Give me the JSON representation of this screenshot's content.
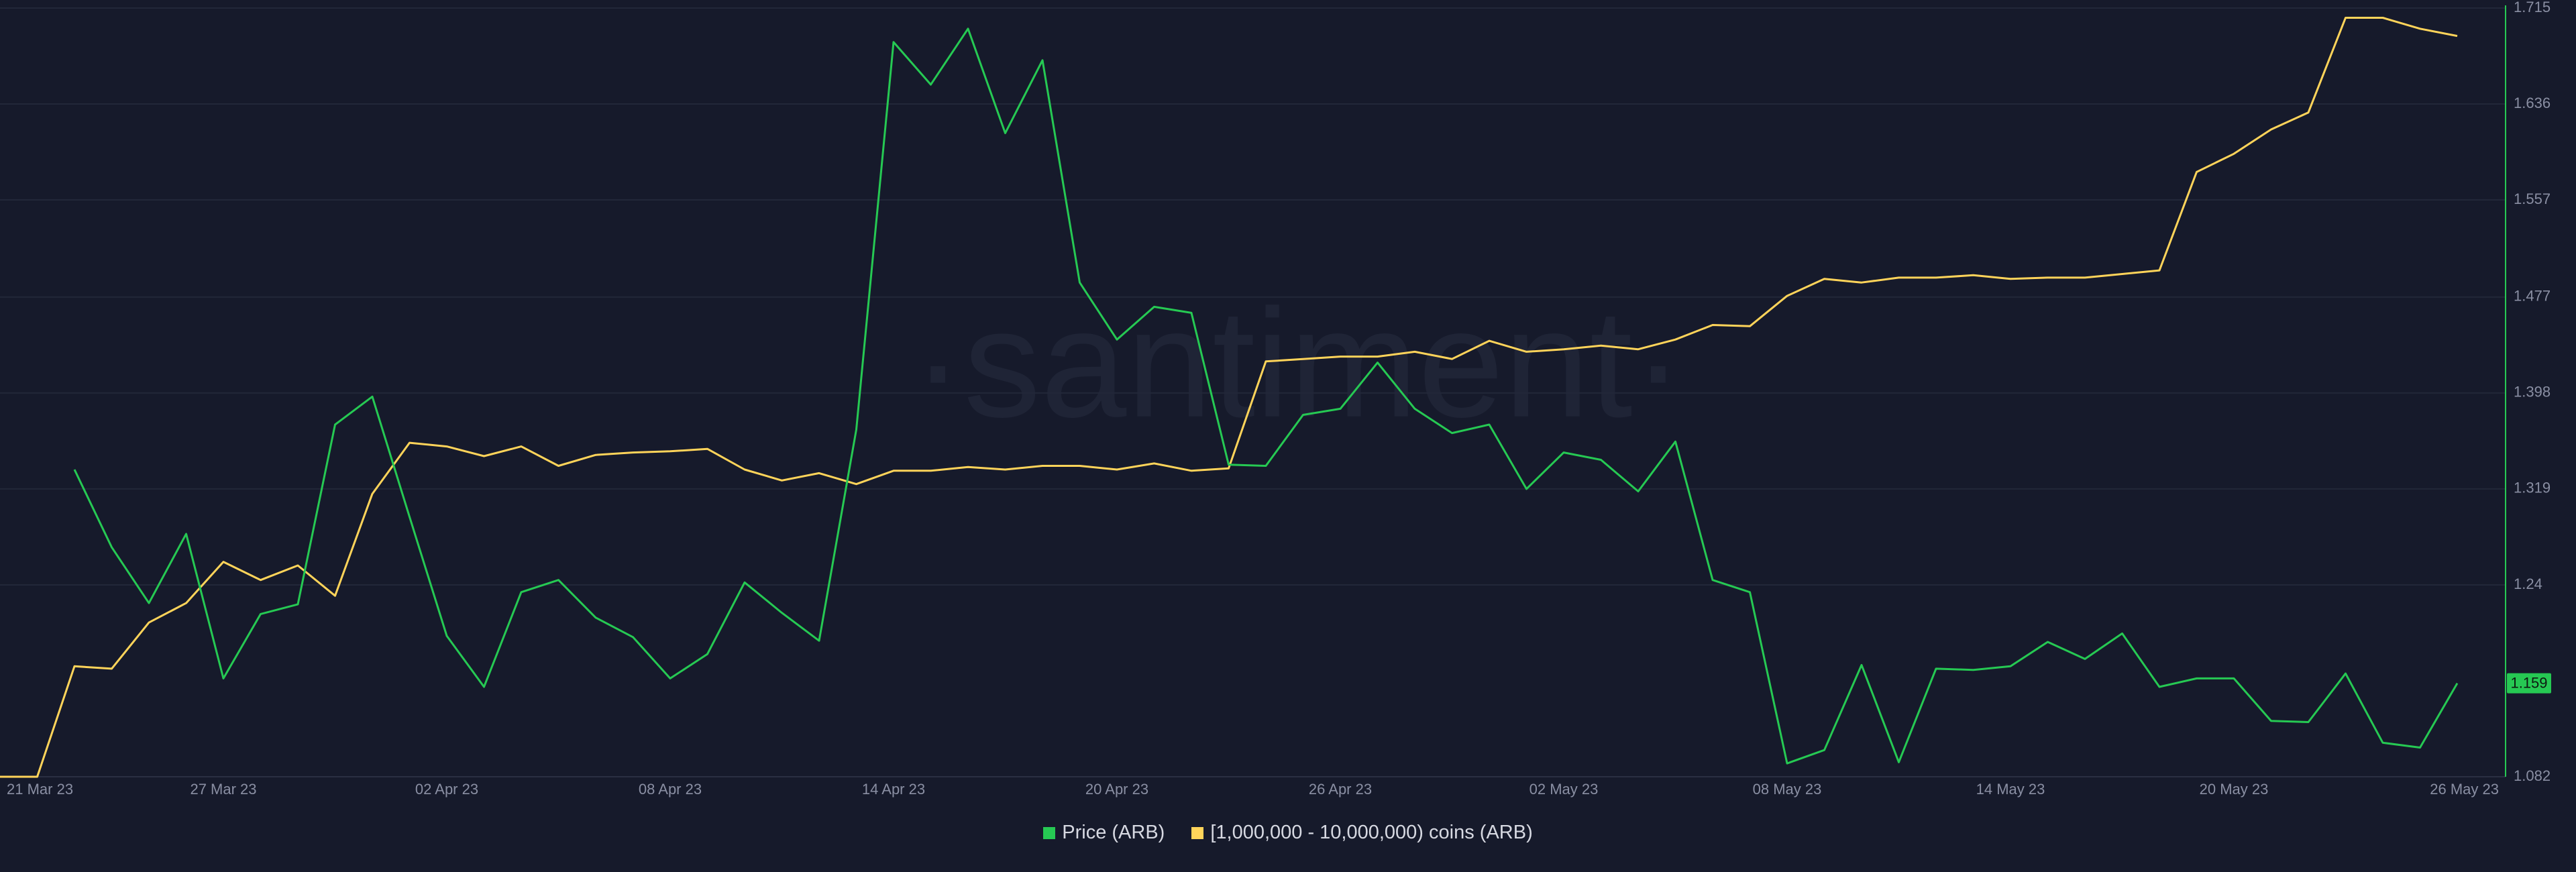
{
  "chart_data": {
    "type": "line",
    "watermark": "·santiment·",
    "categories": [
      "21 Mar 23",
      null,
      null,
      null,
      null,
      null,
      "27 Mar 23",
      null,
      null,
      null,
      null,
      null,
      "02 Apr 23",
      null,
      null,
      null,
      null,
      null,
      "08 Apr 23",
      null,
      null,
      null,
      null,
      null,
      "14 Apr 23",
      null,
      null,
      null,
      null,
      null,
      "20 Apr 23",
      null,
      null,
      null,
      null,
      null,
      "26 Apr 23",
      null,
      null,
      null,
      null,
      null,
      "02 May 23",
      null,
      null,
      null,
      null,
      null,
      "08 May 23",
      null,
      null,
      null,
      null,
      null,
      "14 May 23",
      null,
      null,
      null,
      null,
      null,
      "20 May 23",
      null,
      null,
      null,
      null,
      null,
      "26 May 23"
    ],
    "series": [
      {
        "name": "Price (ARB)",
        "color": "#26c953",
        "values": [
          null,
          null,
          1.335,
          1.271,
          1.225,
          1.282,
          1.163,
          1.216,
          1.224,
          1.372,
          1.395,
          1.296,
          1.198,
          1.156,
          1.234,
          1.244,
          1.213,
          1.197,
          1.163,
          1.183,
          1.242,
          1.217,
          1.194,
          1.368,
          1.687,
          1.652,
          1.698,
          1.612,
          1.672,
          1.489,
          1.442,
          1.469,
          1.464,
          1.339,
          1.338,
          1.38,
          1.385,
          1.423,
          1.385,
          1.365,
          1.372,
          1.319,
          1.349,
          1.343,
          1.317,
          1.358,
          1.244,
          1.234,
          1.093,
          1.104,
          1.174,
          1.094,
          1.171,
          1.17,
          1.173,
          1.193,
          1.179,
          1.2,
          1.156,
          1.163,
          1.163,
          1.128,
          1.127,
          1.167,
          1.11,
          1.106,
          1.159
        ]
      },
      {
        "name": "[1,000,000 - 10,000,000) coins (ARB)",
        "color": "#ffd45a",
        "values": [
          1.082,
          1.082,
          1.173,
          1.171,
          1.209,
          1.225,
          1.259,
          1.244,
          1.256,
          1.231,
          1.315,
          1.357,
          1.354,
          1.346,
          1.354,
          1.338,
          1.347,
          1.349,
          1.35,
          1.352,
          1.335,
          1.326,
          1.332,
          1.323,
          1.334,
          1.334,
          1.337,
          1.335,
          1.338,
          1.338,
          1.335,
          1.34,
          1.334,
          1.336,
          1.424,
          1.426,
          1.428,
          1.428,
          1.432,
          1.426,
          1.441,
          1.432,
          1.434,
          1.437,
          1.434,
          1.442,
          1.454,
          1.453,
          1.478,
          1.492,
          1.489,
          1.493,
          1.493,
          1.495,
          1.492,
          1.493,
          1.493,
          1.496,
          1.499,
          1.58,
          1.595,
          1.615,
          1.629,
          1.707,
          1.707,
          1.698,
          1.692
        ]
      }
    ],
    "ylim": [
      1.082,
      1.715
    ],
    "yticks": [
      1.082,
      1.24,
      1.319,
      1.398,
      1.477,
      1.557,
      1.636,
      1.715
    ],
    "grid": true,
    "legend": "bottom"
  }
}
